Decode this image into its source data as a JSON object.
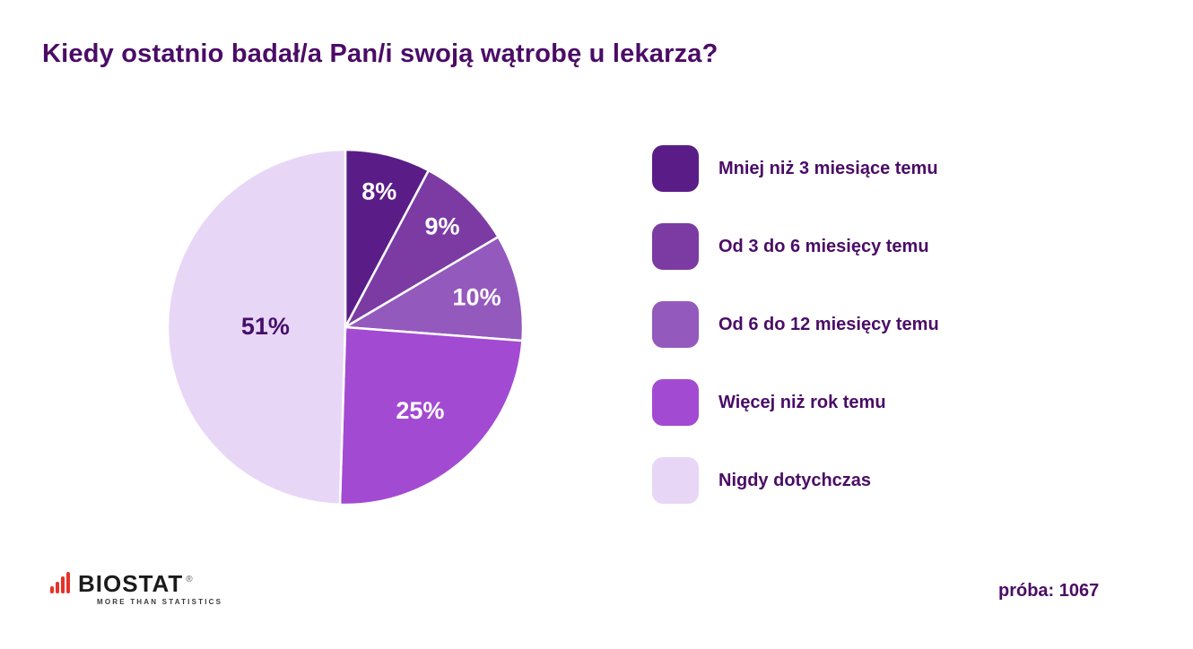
{
  "chart_data": {
    "type": "pie",
    "title": "Kiedy ostatnio badał/a Pan/i swoją wątrobę u lekarza?",
    "start_angle_deg": 0,
    "direction": "clockwise",
    "legend_position": "right",
    "values_sum": 103,
    "slices": [
      {
        "label": "Mniej niż 3 miesiące temu",
        "value": 8,
        "display": "8%",
        "color": "#5a1d87",
        "label_color": "#ffffff",
        "label_r": 0.79
      },
      {
        "label": "Od 3 do 6 miesięcy temu",
        "value": 9,
        "display": "9%",
        "color": "#7b3ba3",
        "label_color": "#ffffff",
        "label_r": 0.79
      },
      {
        "label": "Od 6 do 12 miesięcy temu",
        "value": 10,
        "display": "10%",
        "color": "#9459bd",
        "label_color": "#ffffff",
        "label_r": 0.76
      },
      {
        "label": "Więcej niż rok temu",
        "value": 25,
        "display": "25%",
        "color": "#a34ad2",
        "label_color": "#ffffff",
        "label_r": 0.63
      },
      {
        "label": "Nigdy dotychczas",
        "value": 51,
        "display": "51%",
        "color": "#e8d6f7",
        "label_color": "#451068",
        "label_r": 0.45
      }
    ]
  },
  "footer": {
    "brand": "BIOSTAT",
    "brand_registered": "®",
    "brand_tagline": "MORE THAN STATISTICS",
    "sample_label": "próba: 1067"
  },
  "colors": {
    "title_text": "#4b0c66",
    "legend_text": "#4b0c66",
    "brand_red": "#e63229",
    "background": "#ffffff"
  }
}
